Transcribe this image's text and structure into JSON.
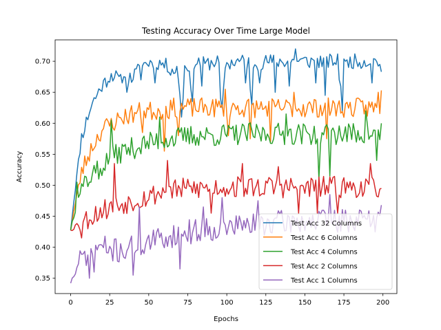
{
  "chart_data": {
    "type": "line",
    "title": "Testing Accuracy Over Time Large Model",
    "xlabel": "Epochs",
    "ylabel": "Accuracy",
    "xlim": [
      -9.95,
      208.95
    ],
    "ylim": [
      0.3253,
      0.7345
    ],
    "xticks": [
      0,
      25,
      50,
      75,
      100,
      125,
      150,
      175,
      200
    ],
    "yticks": [
      0.35,
      0.4,
      0.45,
      0.5,
      0.55,
      0.6,
      0.65,
      0.7
    ],
    "ytick_labels": [
      "0.35",
      "0.40",
      "0.45",
      "0.50",
      "0.55",
      "0.60",
      "0.65",
      "0.70"
    ],
    "grid": false,
    "legend_position": "lower-right",
    "series": [
      {
        "name": "Test Acc 32 Columns",
        "color": "#1f77b4",
        "base": [
          0.43,
          0.575,
          0.63,
          0.66,
          0.68,
          0.665,
          0.675,
          0.695,
          0.7,
          0.695,
          0.685,
          0.69,
          0.7,
          0.695,
          0.7,
          0.695,
          0.7,
          0.7,
          0.695,
          0.7,
          0.7,
          0.7,
          0.7,
          0.7,
          0.7,
          0.7,
          0.7,
          0.7,
          0.7,
          0.7,
          0.7
        ],
        "amp": 0.012,
        "dips": [
          [
            33,
            0.665
          ],
          [
            34,
            0.675
          ],
          [
            36,
            0.65
          ],
          [
            45,
            0.67
          ],
          [
            54,
            0.665
          ],
          [
            69,
            0.67
          ],
          [
            70,
            0.645
          ],
          [
            71,
            0.61
          ],
          [
            72,
            0.64
          ],
          [
            77,
            0.655
          ],
          [
            78,
            0.635
          ],
          [
            84,
            0.66
          ],
          [
            96,
            0.64
          ],
          [
            97,
            0.625
          ],
          [
            98,
            0.66
          ],
          [
            112,
            0.665
          ],
          [
            115,
            0.655
          ],
          [
            116,
            0.63
          ],
          [
            121,
            0.665
          ],
          [
            131,
            0.65
          ],
          [
            140,
            0.66
          ],
          [
            144,
            0.72
          ],
          [
            157,
            0.665
          ],
          [
            163,
            0.645
          ],
          [
            172,
            0.67
          ],
          [
            173,
            0.66
          ],
          [
            174,
            0.62
          ],
          [
            176,
            0.7
          ],
          [
            193,
            0.665
          ],
          [
            198,
            0.695
          ],
          [
            199,
            0.683
          ]
        ],
        "seed": 11
      },
      {
        "name": "Test Acc 6 Columns",
        "color": "#ff7f0e",
        "base": [
          0.43,
          0.52,
          0.56,
          0.59,
          0.6,
          0.61,
          0.615,
          0.62,
          0.62,
          0.62,
          0.625,
          0.625,
          0.625,
          0.625,
          0.625,
          0.625,
          0.625,
          0.625,
          0.625,
          0.625,
          0.625,
          0.625,
          0.625,
          0.625,
          0.625,
          0.625,
          0.625,
          0.625,
          0.625,
          0.625,
          0.625
        ],
        "amp": 0.016,
        "dips": [
          [
            60,
            0.555
          ],
          [
            46,
            0.585
          ],
          [
            69,
            0.58
          ],
          [
            101,
            0.58
          ],
          [
            115,
            0.575
          ],
          [
            128,
            0.57
          ],
          [
            164,
            0.575
          ],
          [
            99,
            0.655
          ],
          [
            143,
            0.65
          ],
          [
            197,
            0.65
          ],
          [
            199,
            0.653
          ]
        ],
        "seed": 23
      },
      {
        "name": "Test Acc 4 Columns",
        "color": "#2ca02c",
        "base": [
          0.43,
          0.5,
          0.52,
          0.53,
          0.545,
          0.555,
          0.56,
          0.565,
          0.57,
          0.575,
          0.575,
          0.578,
          0.58,
          0.58,
          0.58,
          0.582,
          0.582,
          0.583,
          0.583,
          0.583,
          0.583,
          0.583,
          0.583,
          0.583,
          0.583,
          0.583,
          0.583,
          0.583,
          0.583,
          0.583,
          0.583
        ],
        "amp": 0.018,
        "dips": [
          [
            4,
            0.505
          ],
          [
            12,
            0.505
          ],
          [
            18,
            0.51
          ],
          [
            26,
            0.605
          ],
          [
            57,
            0.61
          ],
          [
            138,
            0.615
          ],
          [
            159,
            0.51
          ],
          [
            166,
            0.515
          ],
          [
            189,
            0.62
          ],
          [
            196,
            0.54
          ],
          [
            199,
            0.6
          ]
        ],
        "seed": 37
      },
      {
        "name": "Test Acc 2 Columns",
        "color": "#d62728",
        "base": [
          0.43,
          0.44,
          0.45,
          0.46,
          0.465,
          0.47,
          0.475,
          0.48,
          0.485,
          0.49,
          0.492,
          0.494,
          0.495,
          0.496,
          0.497,
          0.497,
          0.497,
          0.497,
          0.497,
          0.497,
          0.497,
          0.497,
          0.497,
          0.497,
          0.497,
          0.497,
          0.497,
          0.497,
          0.497,
          0.497,
          0.497
        ],
        "amp": 0.018,
        "dips": [
          [
            7,
            0.415
          ],
          [
            28,
            0.535
          ],
          [
            62,
            0.54
          ],
          [
            90,
            0.455
          ],
          [
            110,
            0.535
          ],
          [
            133,
            0.53
          ],
          [
            146,
            0.455
          ],
          [
            158,
            0.455
          ],
          [
            171,
            0.455
          ],
          [
            192,
            0.535
          ],
          [
            199,
            0.495
          ]
        ],
        "seed": 53
      },
      {
        "name": "Test Acc 1 Columns",
        "color": "#9467bd",
        "base": [
          0.342,
          0.38,
          0.4,
          0.4,
          0.395,
          0.395,
          0.4,
          0.405,
          0.41,
          0.415,
          0.42,
          0.425,
          0.425,
          0.43,
          0.43,
          0.432,
          0.435,
          0.435,
          0.437,
          0.44,
          0.44,
          0.44,
          0.442,
          0.442,
          0.442,
          0.442,
          0.442,
          0.442,
          0.442,
          0.442,
          0.442
        ],
        "amp": 0.02,
        "dips": [
          [
            0,
            0.342
          ],
          [
            12,
            0.35
          ],
          [
            15,
            0.36
          ],
          [
            40,
            0.355
          ],
          [
            44,
            0.465
          ],
          [
            70,
            0.365
          ],
          [
            85,
            0.465
          ],
          [
            97,
            0.48
          ],
          [
            120,
            0.475
          ],
          [
            166,
            0.485
          ],
          [
            185,
            0.46
          ],
          [
            199,
            0.468
          ]
        ],
        "seed": 71
      }
    ]
  }
}
